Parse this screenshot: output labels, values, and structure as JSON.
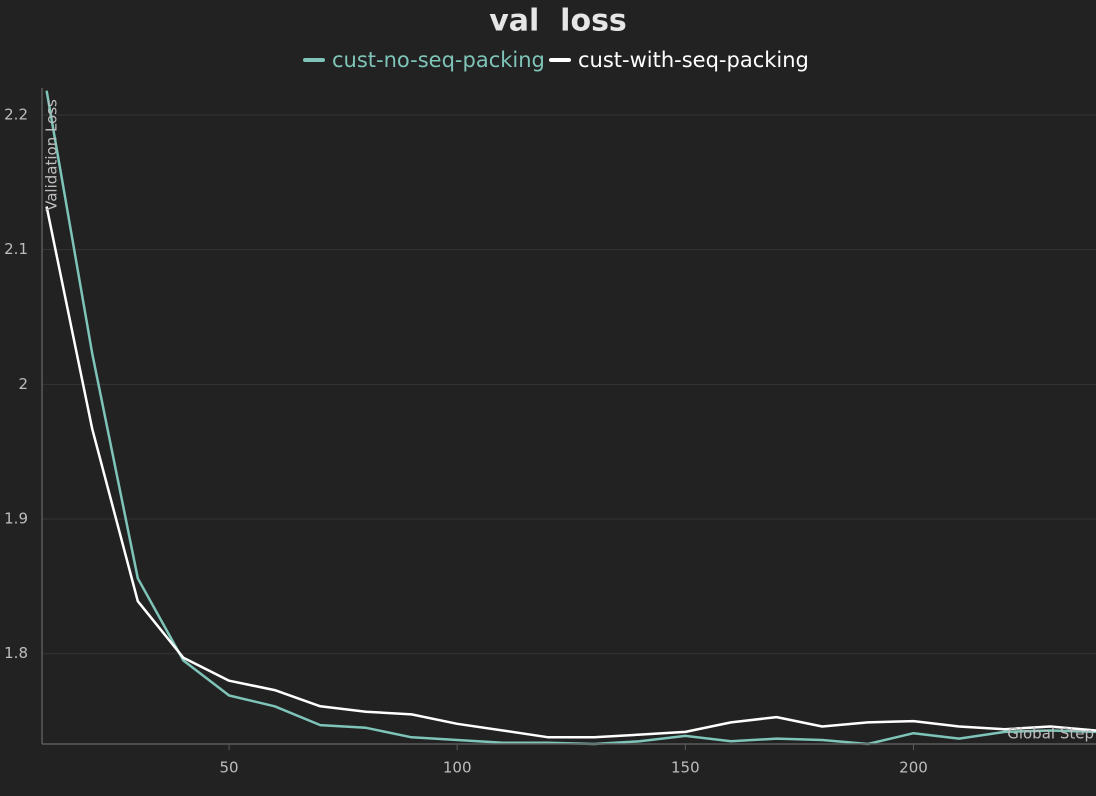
{
  "chart_data": {
    "type": "line",
    "title": "val  loss",
    "x_label": "Global Step",
    "y_label": "Validation Loss",
    "x": [
      10,
      20,
      30,
      40,
      50,
      60,
      70,
      80,
      90,
      100,
      110,
      120,
      130,
      140,
      150,
      160,
      170,
      180,
      190,
      200,
      210,
      220,
      230,
      240
    ],
    "series": [
      {
        "name": "cust-no-seq-packing",
        "color": "#7ec4b8",
        "values": [
          2.218,
          2.023,
          1.856,
          1.795,
          1.769,
          1.761,
          1.747,
          1.745,
          1.738,
          1.736,
          1.734,
          1.734,
          1.733,
          1.735,
          1.739,
          1.735,
          1.737,
          1.736,
          1.733,
          1.741,
          1.737,
          1.742,
          1.743,
          1.742
        ]
      },
      {
        "name": "cust-with-seq-packing",
        "color": "#ffffff",
        "values": [
          2.132,
          1.967,
          1.839,
          1.797,
          1.78,
          1.773,
          1.761,
          1.757,
          1.755,
          1.748,
          1.743,
          1.738,
          1.738,
          1.74,
          1.742,
          1.749,
          1.753,
          1.746,
          1.749,
          1.75,
          1.746,
          1.744,
          1.746,
          1.743
        ]
      }
    ],
    "xlim": [
      9,
      240
    ],
    "ylim": [
      1.733,
      2.22
    ],
    "xticks": [
      50,
      100,
      150,
      200
    ],
    "yticks": [
      1.8,
      1.9,
      2,
      2.1,
      2.2
    ],
    "grid": true
  }
}
